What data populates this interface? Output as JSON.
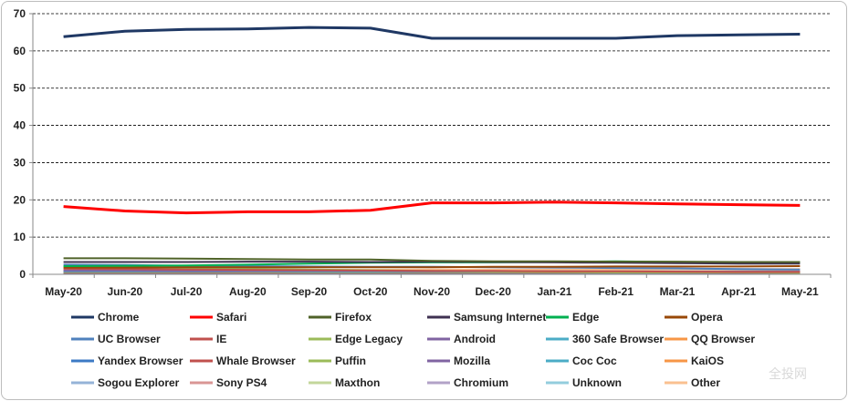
{
  "chart_data": {
    "type": "line",
    "title": "",
    "xlabel": "",
    "ylabel": "",
    "ylim": [
      0,
      70
    ],
    "yticks": [
      0,
      10,
      20,
      30,
      40,
      50,
      60,
      70
    ],
    "grid": "horizontal-dashed",
    "legend_position": "bottom",
    "categories": [
      "May-20",
      "Jun-20",
      "Jul-20",
      "Aug-20",
      "Sep-20",
      "Oct-20",
      "Nov-20",
      "Dec-20",
      "Jan-21",
      "Feb-21",
      "Mar-21",
      "Apr-21",
      "May-21"
    ],
    "series": [
      {
        "name": "Chrome",
        "color": "#1f3864",
        "values": [
          63.8,
          65.3,
          65.8,
          65.9,
          66.3,
          66.1,
          63.4,
          63.4,
          63.4,
          63.4,
          64.1,
          64.3,
          64.5
        ]
      },
      {
        "name": "Safari",
        "color": "#ff0000",
        "values": [
          18.2,
          17.0,
          16.5,
          16.8,
          16.8,
          17.2,
          19.2,
          19.2,
          19.4,
          19.2,
          18.9,
          18.7,
          18.5
        ]
      },
      {
        "name": "Firefox",
        "color": "#4f6228",
        "values": [
          4.3,
          4.3,
          4.2,
          4.1,
          4.0,
          4.0,
          3.6,
          3.5,
          3.5,
          3.4,
          3.4,
          3.3,
          3.3
        ]
      },
      {
        "name": "Samsung Internet",
        "color": "#3f3151",
        "values": [
          3.3,
          3.3,
          3.3,
          3.4,
          3.4,
          3.3,
          3.4,
          3.3,
          3.2,
          3.1,
          3.0,
          2.9,
          2.9
        ]
      },
      {
        "name": "Edge",
        "color": "#00b050",
        "values": [
          2.2,
          2.3,
          2.4,
          2.6,
          2.9,
          3.1,
          3.2,
          3.2,
          3.3,
          3.5,
          3.3,
          3.2,
          3.3
        ]
      },
      {
        "name": "Opera",
        "color": "#984807",
        "values": [
          1.8,
          1.8,
          1.9,
          1.9,
          1.9,
          1.9,
          1.9,
          2.0,
          2.0,
          2.1,
          2.1,
          2.1,
          2.2
        ]
      },
      {
        "name": "UC Browser",
        "color": "#4f81bd",
        "values": [
          2.6,
          2.5,
          2.3,
          2.2,
          2.1,
          2.0,
          2.0,
          1.9,
          1.8,
          1.7,
          1.6,
          1.4,
          1.3
        ]
      },
      {
        "name": "IE",
        "color": "#c0504d",
        "values": [
          1.5,
          1.4,
          1.3,
          1.2,
          1.1,
          1.0,
          0.9,
          0.9,
          0.8,
          0.8,
          0.7,
          0.6,
          0.6
        ]
      },
      {
        "name": "Edge Legacy",
        "color": "#9bbb59",
        "values": [
          2.0,
          1.9,
          1.7,
          1.5,
          1.3,
          1.1,
          0.9,
          0.8,
          0.7,
          0.6,
          0.5,
          0.5,
          0.4
        ]
      },
      {
        "name": "Android",
        "color": "#8064a2",
        "values": [
          1.0,
          1.0,
          0.9,
          0.9,
          0.9,
          0.9,
          0.8,
          0.8,
          0.8,
          0.7,
          0.7,
          0.7,
          0.7
        ]
      },
      {
        "name": "360 Safe Browser",
        "color": "#4bacc6",
        "values": [
          0.8,
          0.8,
          0.8,
          0.8,
          0.7,
          0.7,
          0.7,
          0.7,
          0.7,
          0.7,
          0.6,
          0.6,
          0.6
        ]
      },
      {
        "name": "QQ Browser",
        "color": "#f79646",
        "values": [
          0.9,
          0.9,
          0.9,
          0.8,
          0.8,
          0.8,
          0.8,
          0.8,
          0.8,
          0.8,
          0.8,
          0.8,
          0.8
        ]
      },
      {
        "name": "Yandex Browser",
        "color": "#3c7ac4",
        "values": [
          0.8,
          0.8,
          0.8,
          0.8,
          0.8,
          0.8,
          0.8,
          0.8,
          0.8,
          0.8,
          0.8,
          0.8,
          0.8
        ]
      },
      {
        "name": "Whale Browser",
        "color": "#c0504d",
        "values": [
          0.6,
          0.6,
          0.6,
          0.6,
          0.6,
          0.6,
          0.6,
          0.6,
          0.6,
          0.6,
          0.6,
          0.6,
          0.6
        ]
      },
      {
        "name": "Puffin",
        "color": "#9bbb59",
        "values": [
          0.5,
          0.5,
          0.5,
          0.5,
          0.5,
          0.5,
          0.5,
          0.5,
          0.5,
          0.5,
          0.5,
          0.5,
          0.5
        ]
      },
      {
        "name": "Mozilla",
        "color": "#8064a2",
        "values": [
          0.4,
          0.4,
          0.4,
          0.4,
          0.4,
          0.4,
          0.4,
          0.4,
          0.4,
          0.4,
          0.4,
          0.4,
          0.4
        ]
      },
      {
        "name": "Coc Coc",
        "color": "#4bacc6",
        "values": [
          0.4,
          0.4,
          0.4,
          0.4,
          0.4,
          0.4,
          0.4,
          0.4,
          0.4,
          0.4,
          0.4,
          0.4,
          0.4
        ]
      },
      {
        "name": "KaiOS",
        "color": "#f79646",
        "values": [
          0.3,
          0.3,
          0.3,
          0.3,
          0.3,
          0.3,
          0.3,
          0.3,
          0.3,
          0.3,
          0.3,
          0.3,
          0.3
        ]
      },
      {
        "name": "Sogou Explorer",
        "color": "#95b3d7",
        "values": [
          0.3,
          0.3,
          0.3,
          0.3,
          0.3,
          0.3,
          0.3,
          0.3,
          0.3,
          0.3,
          0.3,
          0.3,
          0.3
        ]
      },
      {
        "name": "Sony PS4",
        "color": "#d99694",
        "values": [
          0.2,
          0.2,
          0.2,
          0.2,
          0.2,
          0.2,
          0.2,
          0.2,
          0.2,
          0.2,
          0.2,
          0.2,
          0.2
        ]
      },
      {
        "name": "Maxthon",
        "color": "#c3d69b",
        "values": [
          0.2,
          0.2,
          0.2,
          0.2,
          0.2,
          0.2,
          0.2,
          0.2,
          0.2,
          0.2,
          0.2,
          0.2,
          0.2
        ]
      },
      {
        "name": "Chromium",
        "color": "#b2a2c7",
        "values": [
          0.2,
          0.2,
          0.2,
          0.2,
          0.2,
          0.2,
          0.2,
          0.2,
          0.2,
          0.2,
          0.2,
          0.2,
          0.2
        ]
      },
      {
        "name": "Unknown",
        "color": "#93cddd",
        "values": [
          0.3,
          0.3,
          0.3,
          0.3,
          0.3,
          0.3,
          0.3,
          0.3,
          0.3,
          0.3,
          0.3,
          0.3,
          0.3
        ]
      },
      {
        "name": "Other",
        "color": "#fac090",
        "values": [
          1.2,
          1.2,
          1.2,
          1.2,
          1.2,
          1.2,
          1.3,
          1.3,
          1.3,
          1.3,
          1.4,
          1.4,
          1.4
        ]
      }
    ]
  },
  "watermark": "全投网"
}
